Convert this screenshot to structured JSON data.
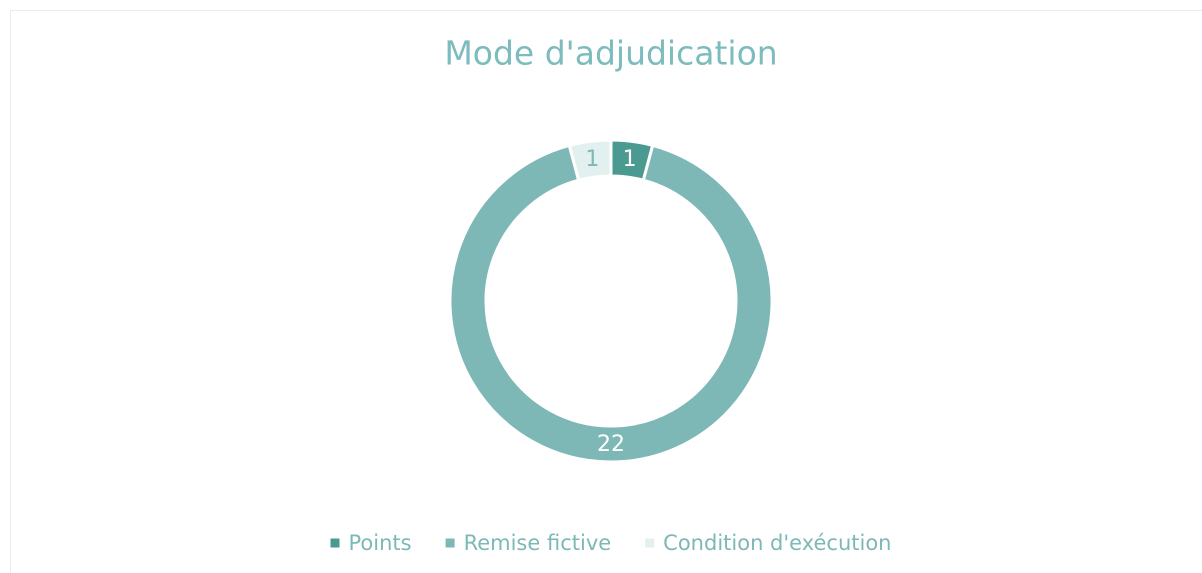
{
  "chart_data": {
    "type": "pie",
    "title": "Mode d'adjudication",
    "categories": [
      "Points",
      "Remise fictive",
      "Condition d'exécution"
    ],
    "values": [
      1,
      22,
      1
    ],
    "colors": [
      "#4a9a92",
      "#7db8b7",
      "#e3f0f0"
    ],
    "label_colors": [
      "#ffffff",
      "#ffffff",
      "#7db8b7"
    ],
    "legend": "bottom"
  }
}
